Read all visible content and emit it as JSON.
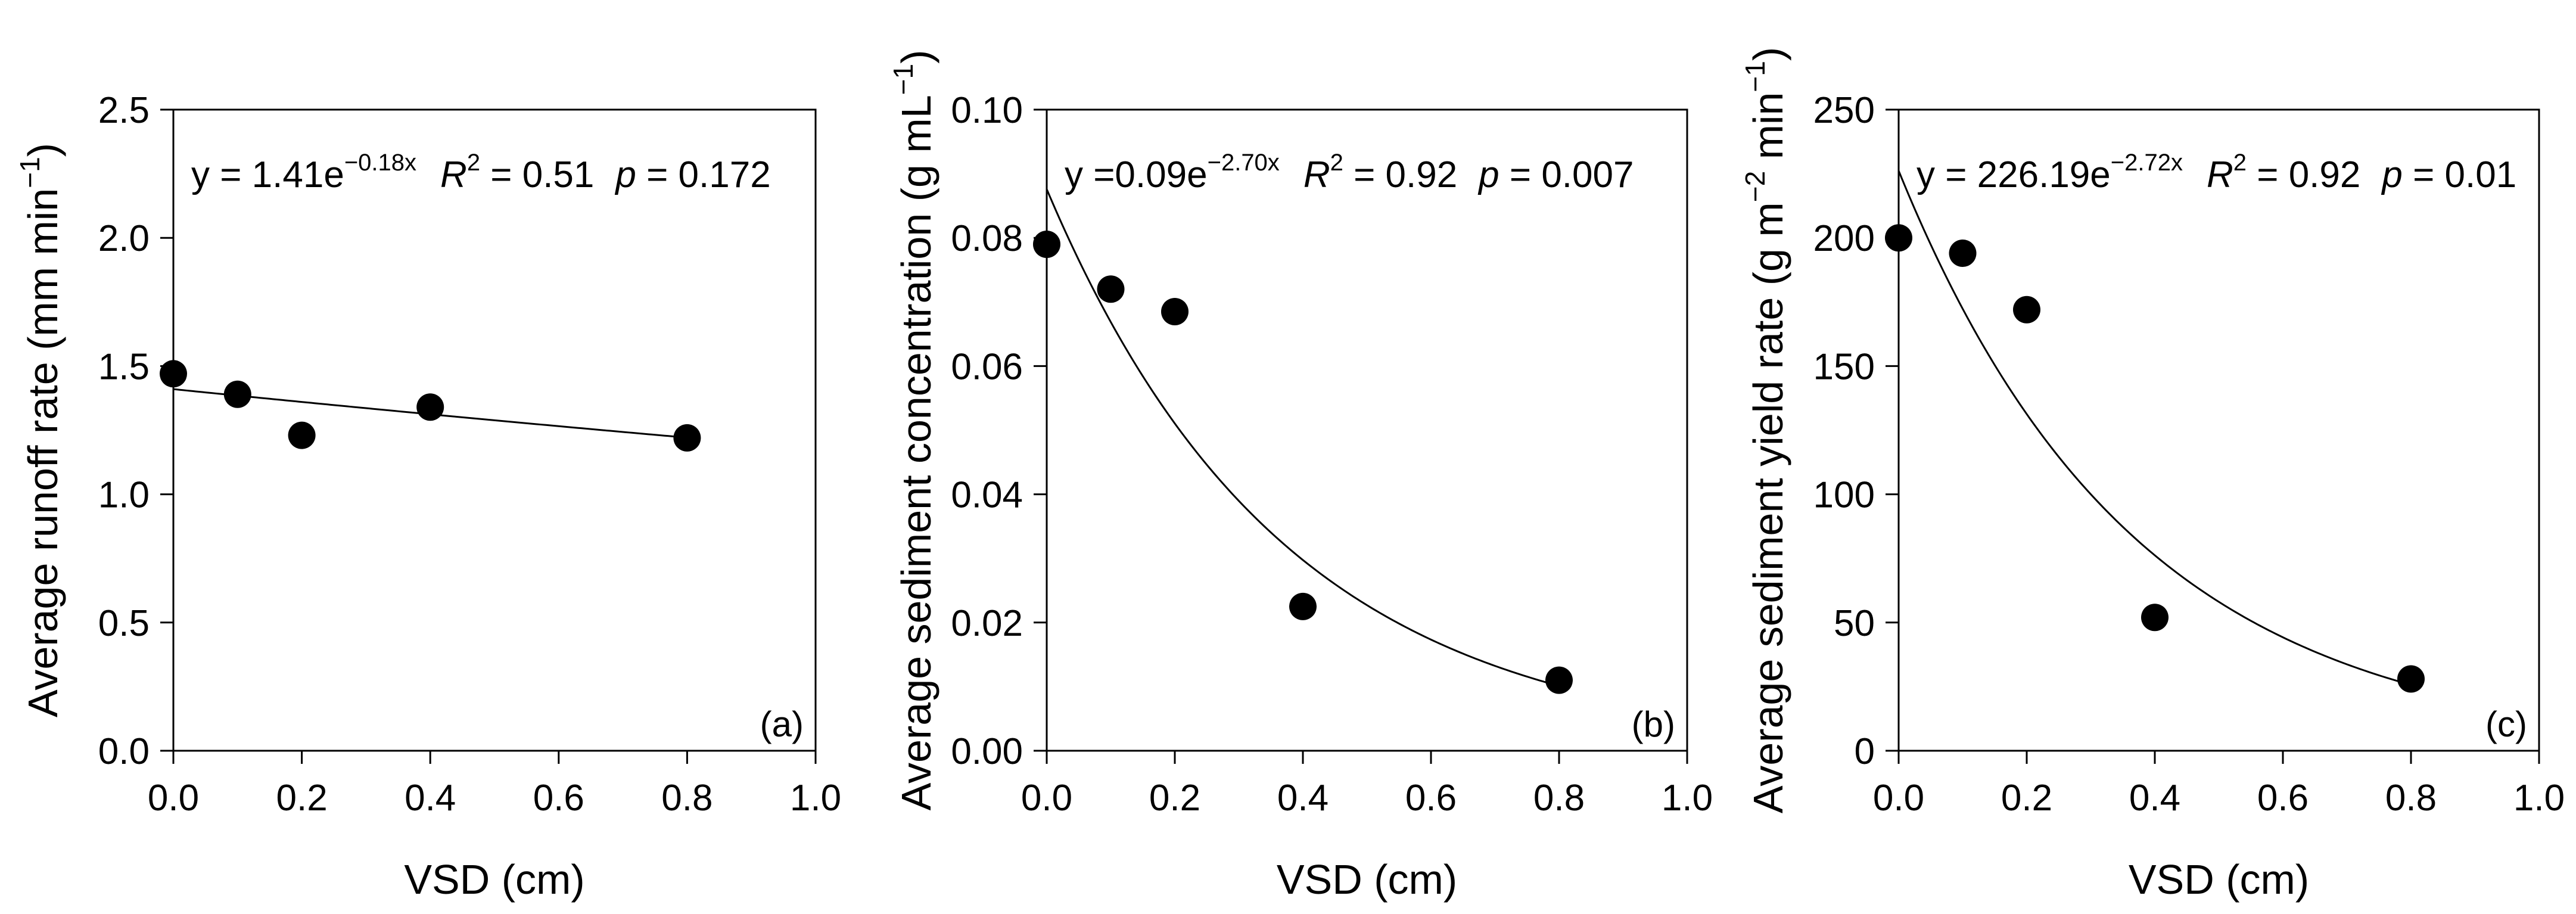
{
  "chart_data": [
    {
      "type": "scatter",
      "panel_label": "(a)",
      "xlabel": "VSD (cm)",
      "ylabel_main": "Average runoff rate (mm min",
      "ylabel_sup": "−1",
      "ylabel_tail": ")",
      "xlim": [
        0.0,
        1.0
      ],
      "ylim": [
        0.0,
        2.5
      ],
      "xticks": [
        "0.0",
        "0.2",
        "0.4",
        "0.6",
        "0.8",
        "1.0"
      ],
      "yticks": [
        "0.0",
        "0.5",
        "1.0",
        "1.5",
        "2.0",
        "2.5"
      ],
      "x": [
        0.0,
        0.1,
        0.2,
        0.4,
        0.8
      ],
      "y": [
        1.47,
        1.39,
        1.23,
        1.34,
        1.22
      ],
      "fit": {
        "a": 1.41,
        "b": -0.18
      },
      "equation": {
        "y_prefix": "y = 1.41e",
        "exponent": "−0.18x",
        "r2_label": "R",
        "r2_sup": "2",
        "r2_value": " = 0.51",
        "p_label": "p",
        "p_value": " = 0.172"
      }
    },
    {
      "type": "scatter",
      "panel_label": "(b)",
      "xlabel": "VSD (cm)",
      "ylabel_main": "Average sediment concentration (g mL",
      "ylabel_sup": "−1",
      "ylabel_tail": ")",
      "xlim": [
        0.0,
        1.0
      ],
      "ylim": [
        0.0,
        0.1
      ],
      "xticks": [
        "0.0",
        "0.2",
        "0.4",
        "0.6",
        "0.8",
        "1.0"
      ],
      "yticks": [
        "0.00",
        "0.02",
        "0.04",
        "0.06",
        "0.08",
        "0.10"
      ],
      "x": [
        0.0,
        0.1,
        0.2,
        0.4,
        0.8
      ],
      "y": [
        0.079,
        0.072,
        0.0685,
        0.0225,
        0.011
      ],
      "fit": {
        "a": 0.0876,
        "b": -2.7
      },
      "equation": {
        "y_prefix": "y =0.09e",
        "exponent": "−2.70x",
        "r2_label": "R",
        "r2_sup": "2",
        "r2_value": " = 0.92",
        "p_label": "p",
        "p_value": " = 0.007"
      }
    },
    {
      "type": "scatter",
      "panel_label": "(c)",
      "xlabel": "VSD (cm)",
      "ylabel_main": "Average sediment yield rate (g m",
      "ylabel_sup": "−2",
      "ylabel_mid": " min",
      "ylabel_sup2": "−1",
      "ylabel_tail": ")",
      "xlim": [
        0.0,
        1.0
      ],
      "ylim": [
        0,
        250
      ],
      "xticks": [
        "0.0",
        "0.2",
        "0.4",
        "0.6",
        "0.8",
        "1.0"
      ],
      "yticks": [
        "0",
        "50",
        "100",
        "150",
        "200",
        "250"
      ],
      "x": [
        0.0,
        0.1,
        0.2,
        0.4,
        0.8
      ],
      "y": [
        200,
        194,
        172,
        52,
        28
      ],
      "fit": {
        "a": 226.19,
        "b": -2.72
      },
      "equation": {
        "y_prefix": "y = 226.19e",
        "exponent": "−2.72x",
        "r2_label": "R",
        "r2_sup": "2",
        "r2_value": " = 0.92",
        "p_label": "p",
        "p_value": " = 0.01"
      }
    }
  ]
}
